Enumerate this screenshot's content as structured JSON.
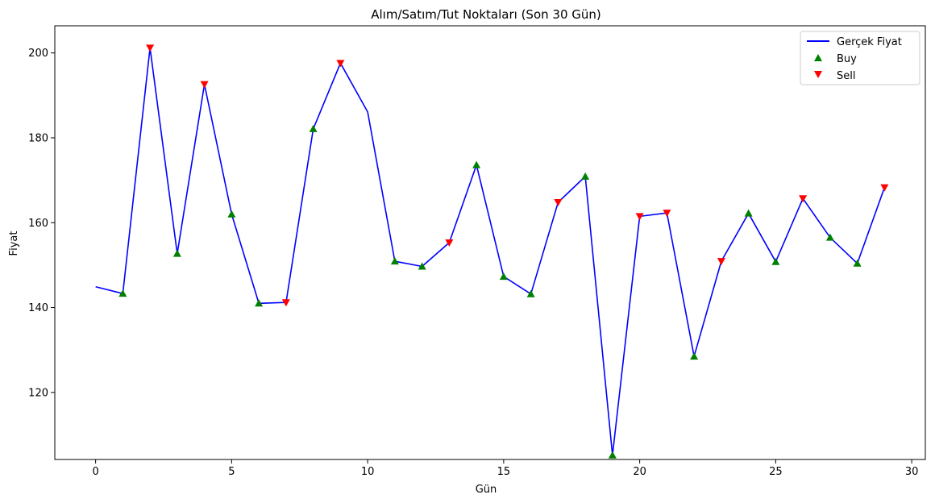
{
  "chart_data": {
    "type": "line",
    "title": "Alım/Satım/Tut Noktaları (Son 30 Gün)",
    "xlabel": "Gün",
    "ylabel": "Fiyat",
    "xlim": [
      -1.5,
      30.5
    ],
    "ylim": [
      104.2,
      206.4
    ],
    "xticks": [
      0,
      5,
      10,
      15,
      20,
      25,
      30
    ],
    "yticks": [
      120,
      140,
      160,
      180,
      200
    ],
    "grid": false,
    "legend_position": "top-right",
    "colors": {
      "line": "#0000ff",
      "buy": "#008000",
      "sell": "#ff0000"
    },
    "series": [
      {
        "name": "Gerçek Fiyat",
        "kind": "line",
        "x": [
          0,
          1,
          2,
          3,
          4,
          5,
          6,
          7,
          8,
          9,
          10,
          11,
          12,
          13,
          14,
          15,
          16,
          17,
          18,
          19,
          20,
          21,
          22,
          23,
          24,
          25,
          26,
          27,
          28,
          29
        ],
        "values": [
          144.9,
          143.3,
          201.2,
          152.7,
          192.6,
          162.0,
          141.0,
          141.2,
          182.1,
          197.6,
          186.1,
          150.9,
          149.7,
          155.3,
          173.6,
          147.3,
          143.2,
          164.8,
          170.9,
          105.2,
          161.5,
          162.3,
          128.5,
          150.9,
          162.2,
          150.8,
          165.7,
          156.5,
          150.4,
          168.3
        ]
      },
      {
        "name": "Buy",
        "kind": "scatter",
        "marker": "triangle-up",
        "x": [
          1,
          3,
          5,
          6,
          8,
          11,
          12,
          14,
          15,
          16,
          18,
          19,
          22,
          24,
          25,
          27,
          28
        ],
        "values": [
          143.3,
          152.7,
          162.0,
          141.0,
          182.1,
          150.9,
          149.7,
          173.6,
          147.3,
          143.2,
          170.9,
          105.2,
          128.5,
          162.2,
          150.8,
          156.5,
          150.4
        ]
      },
      {
        "name": "Sell",
        "kind": "scatter",
        "marker": "triangle-down",
        "x": [
          2,
          4,
          7,
          9,
          13,
          17,
          20,
          21,
          23,
          26,
          29
        ],
        "values": [
          201.2,
          192.6,
          141.2,
          197.6,
          155.3,
          164.8,
          161.5,
          162.3,
          150.9,
          165.7,
          168.3
        ]
      }
    ]
  }
}
